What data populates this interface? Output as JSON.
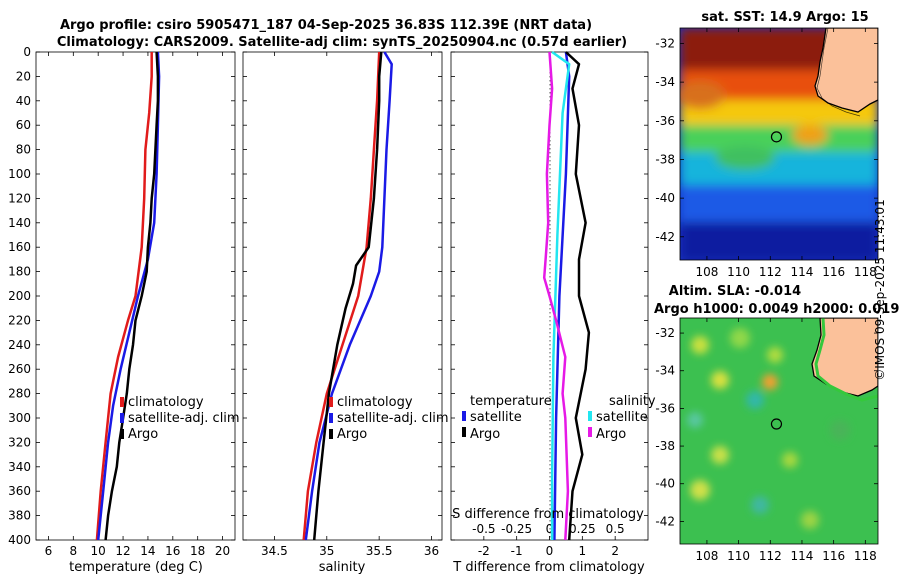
{
  "header": {
    "title_line1": "Argo profile: csiro 5905471_187 04-Sep-2025 36.83S 112.39E (NRT data)",
    "title_line2": "Climatology: CARS2009. Satellite-adj clim: synTS_20250904.nc (0.57d earlier)"
  },
  "credit": "©IMOS 09-Sep-2025 11:43:01",
  "colors": {
    "climatology": "#e11b1b",
    "satellite": "#1a1ae6",
    "argo": "#000000",
    "s_satellite": "#22e6f0",
    "s_argo": "#e619e6",
    "land": "#fbc19a"
  },
  "chart_data": [
    {
      "id": "temperature",
      "type": "line",
      "xlabel": "temperature (deg C)",
      "ylabel": "depth",
      "xlim": [
        5,
        21
      ],
      "ylim": [
        400,
        0
      ],
      "xticks": [
        "6",
        "8",
        "10",
        "12",
        "14",
        "16",
        "18",
        "20"
      ],
      "xtick_values": [
        6,
        8,
        10,
        12,
        14,
        16,
        18,
        20
      ],
      "yticks": [
        "0",
        "20",
        "40",
        "60",
        "80",
        "100",
        "120",
        "140",
        "160",
        "180",
        "200",
        "220",
        "240",
        "260",
        "280",
        "300",
        "320",
        "340",
        "360",
        "380",
        "400"
      ],
      "ytick_values": [
        0,
        20,
        40,
        60,
        80,
        100,
        120,
        140,
        160,
        180,
        200,
        220,
        240,
        260,
        280,
        300,
        320,
        340,
        360,
        380,
        400
      ],
      "legend": {
        "position": "lower-middle",
        "entries": [
          "climatology",
          "satellite-adj. clim",
          "Argo"
        ]
      },
      "series": [
        {
          "name": "climatology",
          "color": "#e11b1b",
          "depth": [
            0,
            20,
            50,
            80,
            120,
            160,
            200,
            220,
            250,
            280,
            320,
            360,
            400
          ],
          "values": [
            14.3,
            14.3,
            14.1,
            13.8,
            13.7,
            13.5,
            13.0,
            12.4,
            11.6,
            11.0,
            10.6,
            10.2,
            9.9
          ]
        },
        {
          "name": "satellite-adj. clim",
          "color": "#1a1ae6",
          "depth": [
            0,
            20,
            60,
            100,
            140,
            170,
            200,
            230,
            260,
            290,
            320,
            360,
            400
          ],
          "values": [
            14.8,
            14.9,
            14.8,
            14.7,
            14.5,
            14.0,
            13.2,
            12.5,
            11.8,
            11.2,
            10.8,
            10.4,
            10.0
          ]
        },
        {
          "name": "Argo",
          "color": "#000000",
          "depth": [
            0,
            20,
            40,
            60,
            80,
            100,
            120,
            140,
            160,
            180,
            200,
            220,
            240,
            260,
            280,
            300,
            320,
            340,
            360,
            380,
            400
          ],
          "values": [
            14.7,
            14.8,
            14.8,
            14.7,
            14.6,
            14.5,
            14.3,
            14.2,
            14.0,
            13.9,
            13.5,
            13.0,
            12.8,
            12.5,
            12.3,
            12.0,
            11.7,
            11.5,
            11.1,
            10.8,
            10.6
          ]
        }
      ]
    },
    {
      "id": "salinity",
      "type": "line",
      "xlabel": "salinity",
      "ylabel": "depth",
      "xlim": [
        34.2,
        36.1
      ],
      "ylim": [
        400,
        0
      ],
      "xticks": [
        "34.5",
        "35",
        "35.5",
        "36"
      ],
      "xtick_values": [
        34.5,
        35,
        35.5,
        36
      ],
      "legend": {
        "position": "lower-middle",
        "entries": [
          "climatology",
          "satellite-adj. clim",
          "Argo"
        ]
      },
      "series": [
        {
          "name": "climatology",
          "color": "#e11b1b",
          "depth": [
            0,
            40,
            80,
            120,
            160,
            200,
            240,
            280,
            320,
            360,
            400
          ],
          "values": [
            35.5,
            35.48,
            35.45,
            35.42,
            35.38,
            35.3,
            35.15,
            35.0,
            34.9,
            34.82,
            34.78
          ]
        },
        {
          "name": "satellite-adj. clim",
          "color": "#1a1ae6",
          "depth": [
            0,
            10,
            40,
            80,
            120,
            160,
            180,
            200,
            240,
            280,
            320,
            360,
            400
          ],
          "values": [
            35.55,
            35.62,
            35.6,
            35.57,
            35.55,
            35.53,
            35.5,
            35.42,
            35.22,
            35.05,
            34.93,
            34.86,
            34.8
          ]
        },
        {
          "name": "Argo",
          "color": "#000000",
          "depth": [
            0,
            20,
            40,
            80,
            120,
            160,
            175,
            190,
            210,
            240,
            280,
            320,
            360,
            400
          ],
          "values": [
            35.52,
            35.5,
            35.5,
            35.48,
            35.45,
            35.4,
            35.28,
            35.25,
            35.18,
            35.1,
            35.02,
            34.97,
            34.92,
            34.88
          ]
        }
      ]
    },
    {
      "id": "differences",
      "type": "line",
      "xlabel": "T difference from climatology",
      "top_xlabel": "S difference from climatology",
      "xlim": [
        -3,
        3
      ],
      "ylim": [
        400,
        0
      ],
      "xticks": [
        "-2",
        "-1",
        "0",
        "1",
        "2"
      ],
      "xtick_values": [
        -2,
        -1,
        0,
        1,
        2
      ],
      "s_ticks": [
        "-0.5",
        "-0.25",
        "0",
        "0.25",
        "0.5"
      ],
      "s_tick_values": [
        -0.5,
        -0.25,
        0,
        0.25,
        0.5
      ],
      "legend": {
        "temperature_title": "temperature",
        "salinity_title": "salinity",
        "entries": [
          "satellite",
          "Argo"
        ]
      },
      "series": [
        {
          "name": "T satellite",
          "color": "#1a1ae6",
          "depth": [
            0,
            20,
            100,
            200,
            300,
            400
          ],
          "values": [
            0.5,
            0.6,
            0.5,
            0.3,
            0.2,
            0.15
          ]
        },
        {
          "name": "T Argo",
          "color": "#000000",
          "depth": [
            0,
            10,
            30,
            60,
            100,
            140,
            170,
            200,
            230,
            260,
            300,
            330,
            360,
            400
          ],
          "values": [
            0.5,
            0.9,
            0.7,
            0.9,
            0.8,
            1.1,
            0.9,
            0.9,
            1.2,
            1.1,
            0.8,
            1.0,
            0.7,
            0.6
          ]
        },
        {
          "name": "S satellite",
          "color": "#22e6f0",
          "depth": [
            0,
            10,
            50,
            150,
            250,
            350,
            400
          ],
          "values": [
            0.02,
            0.15,
            0.1,
            0.06,
            0.03,
            0.02,
            0.02
          ]
        },
        {
          "name": "S Argo",
          "color": "#e619e6",
          "depth": [
            0,
            30,
            60,
            100,
            140,
            170,
            185,
            200,
            220,
            250,
            280,
            300,
            330,
            360,
            400
          ],
          "values": [
            0.0,
            0.02,
            0.0,
            -0.02,
            -0.01,
            -0.03,
            -0.04,
            0.0,
            0.05,
            0.12,
            0.1,
            0.12,
            0.13,
            0.14,
            0.12
          ]
        }
      ]
    },
    {
      "id": "sst_map",
      "type": "heatmap",
      "title": "sat. SST: 14.9 Argo: 15",
      "xticks": [
        "108",
        "110",
        "112",
        "114",
        "116",
        "118"
      ],
      "xtick_values": [
        108,
        110,
        112,
        114,
        116,
        118
      ],
      "yticks": [
        "-32",
        "-34",
        "-36",
        "-38",
        "-40",
        "-42"
      ],
      "ytick_values": [
        -32,
        -34,
        -36,
        -38,
        -40,
        -42
      ],
      "xlim": [
        106.3,
        118.8
      ],
      "ylim": [
        -43.2,
        -31.2
      ],
      "argo_position": [
        112.39,
        -36.83
      ]
    },
    {
      "id": "sla_map",
      "type": "heatmap",
      "title_line1": "Altim. SLA: -0.014",
      "title_line2": "Argo h1000: 0.0049 h2000: 0.019",
      "xticks": [
        "108",
        "110",
        "112",
        "114",
        "116",
        "118"
      ],
      "xtick_values": [
        108,
        110,
        112,
        114,
        116,
        118
      ],
      "yticks": [
        "-32",
        "-34",
        "-36",
        "-38",
        "-40",
        "-42"
      ],
      "ytick_values": [
        -32,
        -34,
        -36,
        -38,
        -40,
        -42
      ],
      "xlim": [
        106.3,
        118.8
      ],
      "ylim": [
        -43.2,
        -31.2
      ],
      "argo_position": [
        112.39,
        -36.83
      ]
    }
  ]
}
